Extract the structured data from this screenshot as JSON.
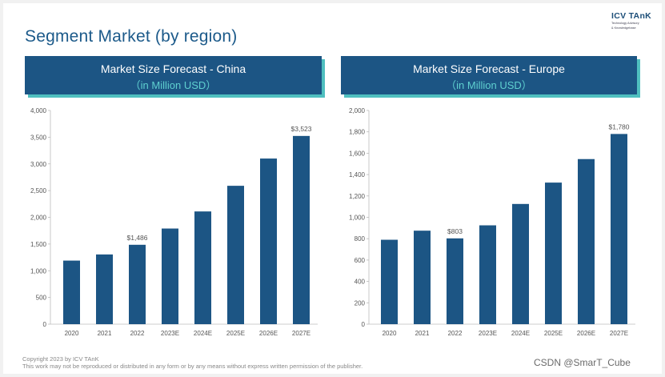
{
  "page": {
    "title": "Segment Market (by region)"
  },
  "logo": {
    "name": "ICV TAnK",
    "tagline_1": "Technology Advisory",
    "tagline_2": "& Knowledgebase"
  },
  "charts": [
    {
      "header": {
        "title": "Market Size Forecast - China",
        "subtitle": "（in Million USD）"
      }
    },
    {
      "header": {
        "title": "Market Size Forecast - Europe",
        "subtitle": "（in Million USD）"
      }
    }
  ],
  "chart_data": [
    {
      "type": "bar",
      "title": "Market Size Forecast - China",
      "subtitle": "（in Million USD）",
      "categories": [
        "2020",
        "2021",
        "2022",
        "2023E",
        "2024E",
        "2025E",
        "2026E",
        "2027E"
      ],
      "values": [
        1190,
        1305,
        1486,
        1790,
        2110,
        2590,
        3100,
        3523
      ],
      "data_labels": [
        null,
        null,
        "$1,486",
        null,
        null,
        null,
        null,
        "$3,523"
      ],
      "yticks": [
        "0",
        "500",
        "1,000",
        "1,500",
        "2,000",
        "2,500",
        "3,000",
        "3,500",
        "4,000"
      ],
      "ylim": [
        0,
        4000
      ],
      "color": "#1c5584",
      "grid": false,
      "legend": "none"
    },
    {
      "type": "bar",
      "title": "Market Size Forecast - Europe",
      "subtitle": "（in Million USD）",
      "categories": [
        "2020",
        "2021",
        "2022",
        "2023E",
        "2024E",
        "2025E",
        "2026E",
        "2027E"
      ],
      "values": [
        790,
        875,
        803,
        925,
        1125,
        1325,
        1545,
        1780
      ],
      "data_labels": [
        null,
        null,
        "$803",
        null,
        null,
        null,
        null,
        "$1,780"
      ],
      "yticks": [
        "0",
        "200",
        "400",
        "600",
        "800",
        "1,000",
        "1,200",
        "1,400",
        "1,600",
        "1,800",
        "2,000"
      ],
      "ylim": [
        0,
        2000
      ],
      "color": "#1c5584",
      "grid": false,
      "legend": "none"
    }
  ],
  "footer": {
    "line1": "Copyright  2023 by ICV TAnK",
    "line2": "This work may not be reproduced or distributed in any form or by any means without express written permission of the publisher."
  },
  "watermark": "CSDN @SmarT_Cube"
}
